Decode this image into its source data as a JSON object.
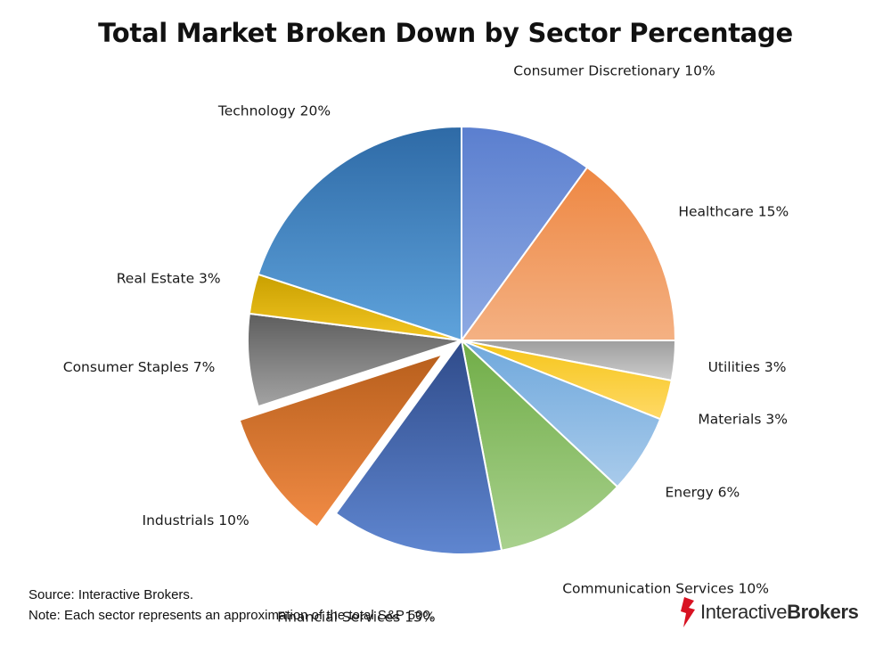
{
  "chart_data": {
    "type": "pie",
    "title": "Total Market Broken Down by Sector Percentage",
    "start_angle_deg": 0,
    "direction": "clockwise",
    "exploded": [
      "Industrials"
    ],
    "slices": [
      {
        "name": "Consumer Discretionary",
        "label": "Consumer Discretionary 10%",
        "value": 10,
        "color": "#5b7fcf",
        "color_light": "#8eaae3"
      },
      {
        "name": "Healthcare",
        "label": "Healthcare 15%",
        "value": 15,
        "color": "#ee8742",
        "color_light": "#f4b183"
      },
      {
        "name": "Utilities",
        "label": "Utilities 3%",
        "value": 3,
        "color": "#9e9e9e",
        "color_light": "#cccccc"
      },
      {
        "name": "Materials",
        "label": "Materials 3%",
        "value": 3,
        "color": "#f5c518",
        "color_light": "#ffd966"
      },
      {
        "name": "Energy",
        "label": "Energy 6%",
        "value": 6,
        "color": "#6fa8dc",
        "color_light": "#a9cbeb"
      },
      {
        "name": "Communication Services",
        "label": "Communication Services 10%",
        "value": 10,
        "color": "#70ad47",
        "color_light": "#a9d18e"
      },
      {
        "name": "Financial Services",
        "label": "Financial Services 13%",
        "value": 13,
        "color": "#2f4b8a",
        "color_light": "#5f86d0"
      },
      {
        "name": "Industrials",
        "label": "Industrials 10%",
        "value": 10,
        "color": "#b85f1c",
        "color_light": "#f18b45"
      },
      {
        "name": "Consumer Staples",
        "label": "Consumer Staples 7%",
        "value": 7,
        "color": "#5e5e5e",
        "color_light": "#a3a3a3"
      },
      {
        "name": "Real Estate",
        "label": "Real Estate 3%",
        "value": 3,
        "color": "#c9a000",
        "color_light": "#f3c623"
      },
      {
        "name": "Technology",
        "label": "Technology 20%",
        "value": 20,
        "color": "#2e6aa6",
        "color_light": "#5fa3dc"
      }
    ]
  },
  "footnotes": {
    "source": "Source: Interactive Brokers.",
    "note": "Note: Each sector represents an approximation of the total S&P 500."
  },
  "brand": {
    "name_part1": "Interactive",
    "name_part2": "Brokers",
    "icon": "interactive-brokers-logo-icon",
    "color": "#d81222"
  }
}
